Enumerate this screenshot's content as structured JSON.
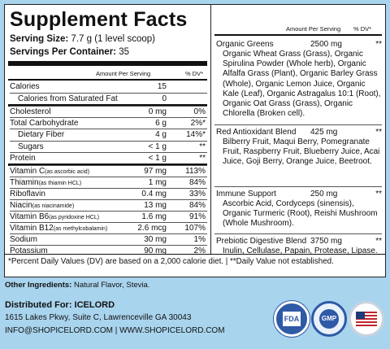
{
  "title": "Supplement Facts",
  "serving_size_label": "Serving Size:",
  "serving_size": "7.7 g (1 level scoop)",
  "servings_label": "Servings Per Container:",
  "servings": "35",
  "hdr_amount": "Amount Per Serving",
  "hdr_dv": "% DV*",
  "rows": [
    {
      "name": "Calories",
      "note": "",
      "amount": "15",
      "dv": ""
    },
    {
      "name": "Calories from Saturated Fat",
      "note": "",
      "amount": "0",
      "dv": ""
    },
    {
      "name": "Cholesterol",
      "note": "",
      "amount": "0 mg",
      "dv": "0%"
    },
    {
      "name": "Total Carbohydrate",
      "note": "",
      "amount": "6 g",
      "dv": "2%*"
    },
    {
      "name": "Dietary Fiber",
      "note": "",
      "amount": "4 g",
      "dv": "14%*"
    },
    {
      "name": "Sugars",
      "note": "",
      "amount": "< 1 g",
      "dv": "**"
    },
    {
      "name": "Protein",
      "note": "",
      "amount": "< 1 g",
      "dv": "**"
    },
    {
      "name": "Vitamin C",
      "note": "(as ascorbic acid)",
      "amount": "97 mg",
      "dv": "113%"
    },
    {
      "name": "Thiamin",
      "note": "(as thiamin HCL)",
      "amount": "1 mg",
      "dv": "84%"
    },
    {
      "name": "Riboflavin",
      "note": "",
      "amount": "0.4 mg",
      "dv": "33%"
    },
    {
      "name": "Niacin",
      "note": "(as niacinamide)",
      "amount": "13 mg",
      "dv": "84%"
    },
    {
      "name": "Vitamin B6",
      "note": "(as pyridoxine HCL)",
      "amount": "1.6 mg",
      "dv": "91%"
    },
    {
      "name": "Vitamin B12",
      "note": "(as methylcobalamin)",
      "amount": "2.6 mcg",
      "dv": "107%"
    },
    {
      "name": "Sodium",
      "note": "",
      "amount": "30 mg",
      "dv": "1%"
    },
    {
      "name": "Potassium",
      "note": "",
      "amount": "90 mg",
      "dv": "2%"
    }
  ],
  "blocks": [
    {
      "title": "Organic Greens",
      "amount": "2500 mg",
      "star": "**",
      "ingredients": "Organic Wheat Grass (Grass), Organic Spirulina Powder (Whole herb), Organic Alfalfa Grass (Plant), Organic Barley Grass (Whole), Organic Lemon Juice, Organic Kale (Leaf), Organic Astragalus 10:1 (Root), Organic Oat Grass (Grass), Organic Chlorella (Broken cell)."
    },
    {
      "title": "Red Antioxidant Blend",
      "amount": "425 mg",
      "star": "**",
      "ingredients": "Bilberry Fruit, Maqui Berry, Pomegranate Fruit, Raspberry Fruit, Blueberry Juice, Acai Juice, Goji Berry, Orange Juice, Beetroot."
    },
    {
      "title": "Immune Support",
      "amount": "250 mg",
      "star": "**",
      "ingredients": "Ascorbic Acid, Cordyceps (sinensis), Organic Turmeric (Root), Reishi Mushroom (Whole Mushroom)."
    },
    {
      "title": "Prebiotic Digestive Blend",
      "amount": "3750 mg",
      "star": "**",
      "ingredients": "Inulin, Cellulase, Papain, Protease, Lipase."
    }
  ],
  "footnote": "*Percent Daily Values (DV) are based on a 2,000 calorie diet.  |  **Daily Value not established.",
  "other_label": "Other Ingredients:",
  "other_value": "Natural Flavor, Stevia.",
  "dist_label": "Distributed For: ICELORD",
  "address": "1615 Lakes Pkwy, Suite C, Lawrenceville GA 30043",
  "contact": "INFO@SHOPICELORD.COM | WWW.SHOPICELORD.COM",
  "badge_fda": "FDA",
  "badge_gmp": "GMP",
  "badge_icons": [
    "fda-badge-icon",
    "gmp-badge-icon",
    "us-flag-icon"
  ]
}
